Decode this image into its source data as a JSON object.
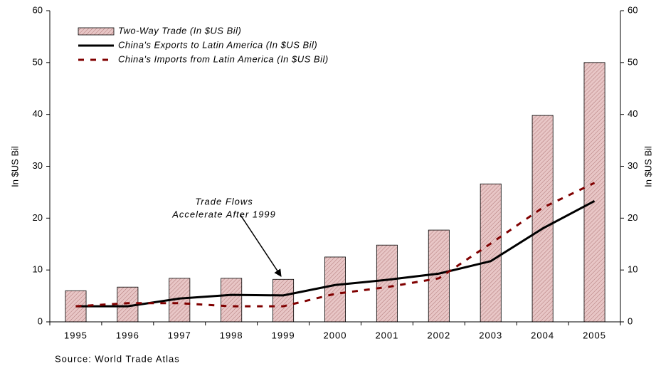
{
  "chart_data": {
    "type": "bar",
    "categories": [
      "1995",
      "1996",
      "1997",
      "1998",
      "1999",
      "2000",
      "2001",
      "2002",
      "2003",
      "2004",
      "2005"
    ],
    "series": [
      {
        "name": "Two-Way Trade (In $US Bil)",
        "type": "bar",
        "color": "#e8c6c6",
        "values": [
          6.0,
          6.7,
          8.4,
          8.4,
          8.2,
          12.5,
          14.8,
          17.7,
          26.6,
          39.8,
          50.0
        ]
      },
      {
        "name": "China's Exports to Latin America (In $US Bil)",
        "type": "line",
        "color": "#000000",
        "values": [
          3.0,
          3.0,
          4.5,
          5.2,
          5.1,
          7.1,
          8.1,
          9.3,
          11.7,
          18.0,
          23.3
        ]
      },
      {
        "name": "China's Imports from Latin America (In $US Bil)",
        "type": "line",
        "style": "dashed",
        "color": "#800000",
        "values": [
          3.0,
          3.6,
          3.6,
          3.0,
          3.0,
          5.4,
          6.7,
          8.4,
          15.1,
          22.0,
          26.8
        ]
      }
    ],
    "ylabel": "In $US Bil",
    "y2label": "In $US Bil",
    "ylim": [
      0,
      60
    ],
    "yticks": [
      0,
      10,
      20,
      30,
      40,
      50,
      60
    ],
    "y2lim": [
      0,
      60
    ],
    "y2ticks": [
      0,
      10,
      20,
      30,
      40,
      50,
      60
    ],
    "annotation": [
      "Trade Flows",
      "Accelerate After 1999"
    ],
    "source": "Source: World Trade Atlas",
    "legend": "upper left"
  }
}
